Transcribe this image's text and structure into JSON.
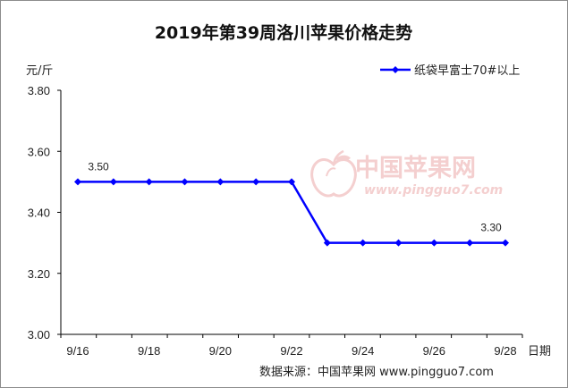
{
  "chart_data": {
    "type": "line",
    "title": "2019年第39周洛川苹果价格走势",
    "ylabel": "元/斤",
    "xlabel": "日期",
    "x": [
      "9/16",
      "9/17",
      "9/18",
      "9/19",
      "9/20",
      "9/21",
      "9/22",
      "9/23",
      "9/24",
      "9/25",
      "9/26",
      "9/27",
      "9/28"
    ],
    "x_tick_labels": [
      "9/16",
      "9/18",
      "9/20",
      "9/22",
      "9/24",
      "9/26",
      "9/28"
    ],
    "y_tick_labels": [
      "3.00",
      "3.20",
      "3.40",
      "3.60",
      "3.80"
    ],
    "ylim": [
      3.0,
      3.8
    ],
    "series": [
      {
        "name": "纸袋早富士70#以上",
        "color": "#0000ff",
        "values": [
          3.5,
          3.5,
          3.5,
          3.5,
          3.5,
          3.5,
          3.5,
          3.3,
          3.3,
          3.3,
          3.3,
          3.3,
          3.3
        ]
      }
    ],
    "data_labels": [
      {
        "index": 0,
        "text": "3.50"
      },
      {
        "index": 12,
        "text": "3.30"
      }
    ],
    "grid": false,
    "legend_position": "top-right"
  },
  "source": "数据来源：中国苹果网 www.pingguo7.com",
  "watermark": {
    "text_cn": "中国苹果网",
    "url": "www.pingguo7.com"
  },
  "colors": {
    "series": "#0000ff",
    "axis": "#000000",
    "watermark": "#f4cfcf",
    "frame": "#8c8c8c"
  }
}
